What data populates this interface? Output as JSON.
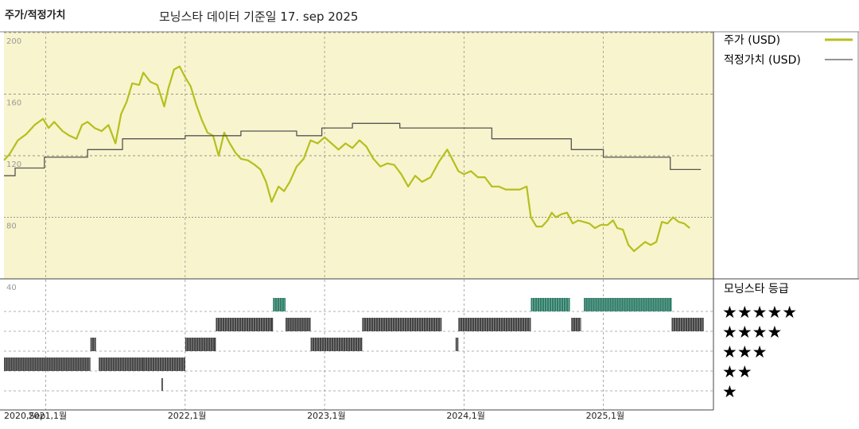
{
  "header": {
    "left_title": "주가/적정가치",
    "center_title": "모닝스타 데이터 기준일 17. sep 2025"
  },
  "chart_data": {
    "type": "line",
    "x_unit": "year",
    "price_axis": {
      "ticks": [
        200,
        160,
        120,
        80,
        40
      ],
      "ylim": [
        40,
        210
      ],
      "grid": true
    },
    "x_ticks": [
      {
        "x": 2020.7,
        "label": "2020,Sep"
      },
      {
        "x": 2021.0,
        "label": "2021,1월"
      },
      {
        "x": 2022.0,
        "label": "2022,1월"
      },
      {
        "x": 2023.0,
        "label": "2023,1월"
      },
      {
        "x": 2024.0,
        "label": "2024,1월"
      },
      {
        "x": 2025.0,
        "label": "2025,1월"
      }
    ],
    "xlim": [
      2020.7,
      2025.75
    ],
    "series": [
      {
        "name": "주가 (USD)",
        "color": "#b5bf1e",
        "points": [
          [
            2020.7,
            117
          ],
          [
            2020.74,
            121
          ],
          [
            2020.8,
            130
          ],
          [
            2020.86,
            134
          ],
          [
            2020.92,
            140
          ],
          [
            2020.98,
            144
          ],
          [
            2021.02,
            138
          ],
          [
            2021.06,
            142
          ],
          [
            2021.12,
            136
          ],
          [
            2021.17,
            133
          ],
          [
            2021.22,
            131
          ],
          [
            2021.26,
            140
          ],
          [
            2021.3,
            142
          ],
          [
            2021.35,
            138
          ],
          [
            2021.4,
            136
          ],
          [
            2021.45,
            140
          ],
          [
            2021.5,
            128
          ],
          [
            2021.54,
            147
          ],
          [
            2021.58,
            155
          ],
          [
            2021.62,
            167
          ],
          [
            2021.67,
            166
          ],
          [
            2021.7,
            174
          ],
          [
            2021.75,
            168
          ],
          [
            2021.8,
            166
          ],
          [
            2021.85,
            152
          ],
          [
            2021.88,
            164
          ],
          [
            2021.92,
            176
          ],
          [
            2021.96,
            178
          ],
          [
            2022.0,
            171
          ],
          [
            2022.04,
            165
          ],
          [
            2022.08,
            153
          ],
          [
            2022.12,
            143
          ],
          [
            2022.16,
            135
          ],
          [
            2022.2,
            133
          ],
          [
            2022.24,
            120
          ],
          [
            2022.28,
            135
          ],
          [
            2022.32,
            128
          ],
          [
            2022.36,
            122
          ],
          [
            2022.4,
            118
          ],
          [
            2022.45,
            117
          ],
          [
            2022.5,
            114
          ],
          [
            2022.54,
            111
          ],
          [
            2022.58,
            103
          ],
          [
            2022.62,
            90
          ],
          [
            2022.67,
            100
          ],
          [
            2022.71,
            97
          ],
          [
            2022.75,
            103
          ],
          [
            2022.8,
            113
          ],
          [
            2022.85,
            118
          ],
          [
            2022.9,
            130
          ],
          [
            2022.95,
            128
          ],
          [
            2023.0,
            132
          ],
          [
            2023.05,
            128
          ],
          [
            2023.1,
            124
          ],
          [
            2023.15,
            128
          ],
          [
            2023.2,
            125
          ],
          [
            2023.25,
            130
          ],
          [
            2023.3,
            126
          ],
          [
            2023.35,
            118
          ],
          [
            2023.4,
            113
          ],
          [
            2023.45,
            115
          ],
          [
            2023.5,
            114
          ],
          [
            2023.55,
            108
          ],
          [
            2023.6,
            100
          ],
          [
            2023.65,
            107
          ],
          [
            2023.7,
            103
          ],
          [
            2023.76,
            106
          ],
          [
            2023.82,
            116
          ],
          [
            2023.88,
            124
          ],
          [
            2023.92,
            117
          ],
          [
            2023.96,
            110
          ],
          [
            2024.0,
            108
          ],
          [
            2024.05,
            110
          ],
          [
            2024.1,
            106
          ],
          [
            2024.15,
            106
          ],
          [
            2024.2,
            100
          ],
          [
            2024.25,
            100
          ],
          [
            2024.3,
            98
          ],
          [
            2024.35,
            98
          ],
          [
            2024.4,
            98
          ],
          [
            2024.45,
            100
          ],
          [
            2024.48,
            80
          ],
          [
            2024.52,
            74
          ],
          [
            2024.56,
            74
          ],
          [
            2024.6,
            78
          ],
          [
            2024.63,
            83
          ],
          [
            2024.66,
            80
          ],
          [
            2024.7,
            82
          ],
          [
            2024.74,
            83
          ],
          [
            2024.78,
            76
          ],
          [
            2024.82,
            78
          ],
          [
            2024.86,
            77
          ],
          [
            2024.9,
            76
          ],
          [
            2024.94,
            73
          ],
          [
            2024.98,
            75
          ],
          [
            2025.03,
            75
          ],
          [
            2025.07,
            78
          ],
          [
            2025.1,
            73
          ],
          [
            2025.14,
            72
          ],
          [
            2025.18,
            62
          ],
          [
            2025.22,
            58
          ],
          [
            2025.26,
            61
          ],
          [
            2025.3,
            64
          ],
          [
            2025.34,
            62
          ],
          [
            2025.38,
            64
          ],
          [
            2025.42,
            77
          ],
          [
            2025.46,
            76
          ],
          [
            2025.5,
            80
          ],
          [
            2025.54,
            77
          ],
          [
            2025.58,
            76
          ],
          [
            2025.62,
            73
          ]
        ]
      },
      {
        "name": "적정가치 (USD)",
        "color": "#555555",
        "points": [
          [
            2020.7,
            107
          ],
          [
            2020.78,
            107
          ],
          [
            2020.78,
            112
          ],
          [
            2020.99,
            112
          ],
          [
            2020.99,
            119
          ],
          [
            2021.3,
            119
          ],
          [
            2021.3,
            124
          ],
          [
            2021.55,
            124
          ],
          [
            2021.55,
            131
          ],
          [
            2022.0,
            131
          ],
          [
            2022.0,
            133
          ],
          [
            2022.4,
            133
          ],
          [
            2022.4,
            136
          ],
          [
            2022.8,
            136
          ],
          [
            2022.8,
            133
          ],
          [
            2022.98,
            133
          ],
          [
            2022.98,
            138
          ],
          [
            2023.2,
            138
          ],
          [
            2023.2,
            141
          ],
          [
            2023.54,
            141
          ],
          [
            2023.54,
            138
          ],
          [
            2024.2,
            138
          ],
          [
            2024.2,
            131
          ],
          [
            2024.77,
            131
          ],
          [
            2024.77,
            124
          ],
          [
            2025.0,
            124
          ],
          [
            2025.0,
            119
          ],
          [
            2025.48,
            119
          ],
          [
            2025.48,
            111
          ],
          [
            2025.7,
            111
          ]
        ]
      }
    ],
    "ratings": {
      "title": "모닝스타 등급",
      "levels": [
        "★★★★★",
        "★★★★",
        "★★★",
        "★★",
        "★"
      ],
      "five_star_color": "#2f7d68",
      "other_color": "#444444",
      "segments": [
        {
          "stars": 2,
          "start": 2020.7,
          "end": 2021.32
        },
        {
          "stars": 3,
          "start": 2021.32,
          "end": 2021.36
        },
        {
          "stars": 2,
          "start": 2021.38,
          "end": 2021.7
        },
        {
          "stars": 1,
          "start": 2021.83,
          "end": 2021.84
        },
        {
          "stars": 2,
          "start": 2021.7,
          "end": 2022.0
        },
        {
          "stars": 3,
          "start": 2022.0,
          "end": 2022.22
        },
        {
          "stars": 4,
          "start": 2022.22,
          "end": 2022.63
        },
        {
          "stars": 5,
          "start": 2022.63,
          "end": 2022.72
        },
        {
          "stars": 4,
          "start": 2022.72,
          "end": 2022.9
        },
        {
          "stars": 3,
          "start": 2022.9,
          "end": 2023.27
        },
        {
          "stars": 4,
          "start": 2023.27,
          "end": 2023.84
        },
        {
          "stars": 3,
          "start": 2023.94,
          "end": 2023.96
        },
        {
          "stars": 4,
          "start": 2023.96,
          "end": 2024.48
        },
        {
          "stars": 5,
          "start": 2024.48,
          "end": 2024.76
        },
        {
          "stars": 4,
          "start": 2024.77,
          "end": 2024.84
        },
        {
          "stars": 5,
          "start": 2024.86,
          "end": 2025.49
        },
        {
          "stars": 4,
          "start": 2025.49,
          "end": 2025.72
        }
      ]
    }
  }
}
